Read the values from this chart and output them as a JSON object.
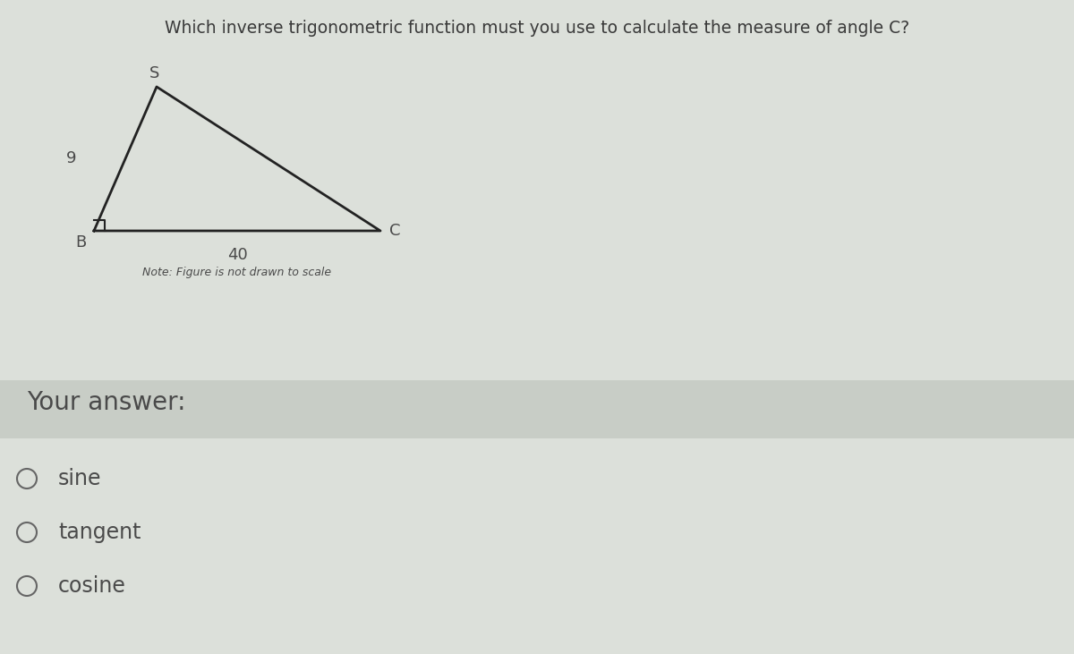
{
  "title": "Which inverse trigonometric function must you use to calculate the measure of angle C?",
  "title_fontsize": 13.5,
  "title_color": "#3a3a3a",
  "bg_color": "#dce0da",
  "upper_bg_color": "#dce0da",
  "answer_band_color": "#c8cdc6",
  "lower_bg_color": "#d4d9d2",
  "label_S": "S",
  "label_B": "B",
  "label_C": "C",
  "side_SB": "9",
  "side_BC": "40",
  "note": "Note: Figure is not drawn to scale",
  "your_answer_label": "Your answer:",
  "options": [
    "sine",
    "tangent",
    "cosine"
  ],
  "text_color": "#4a4a4a",
  "triangle_color": "#222222",
  "option_circle_color": "#666666",
  "note_fontsize": 9,
  "label_fontsize": 13,
  "side_fontsize": 13,
  "answer_fontsize": 20,
  "option_fontsize": 17
}
